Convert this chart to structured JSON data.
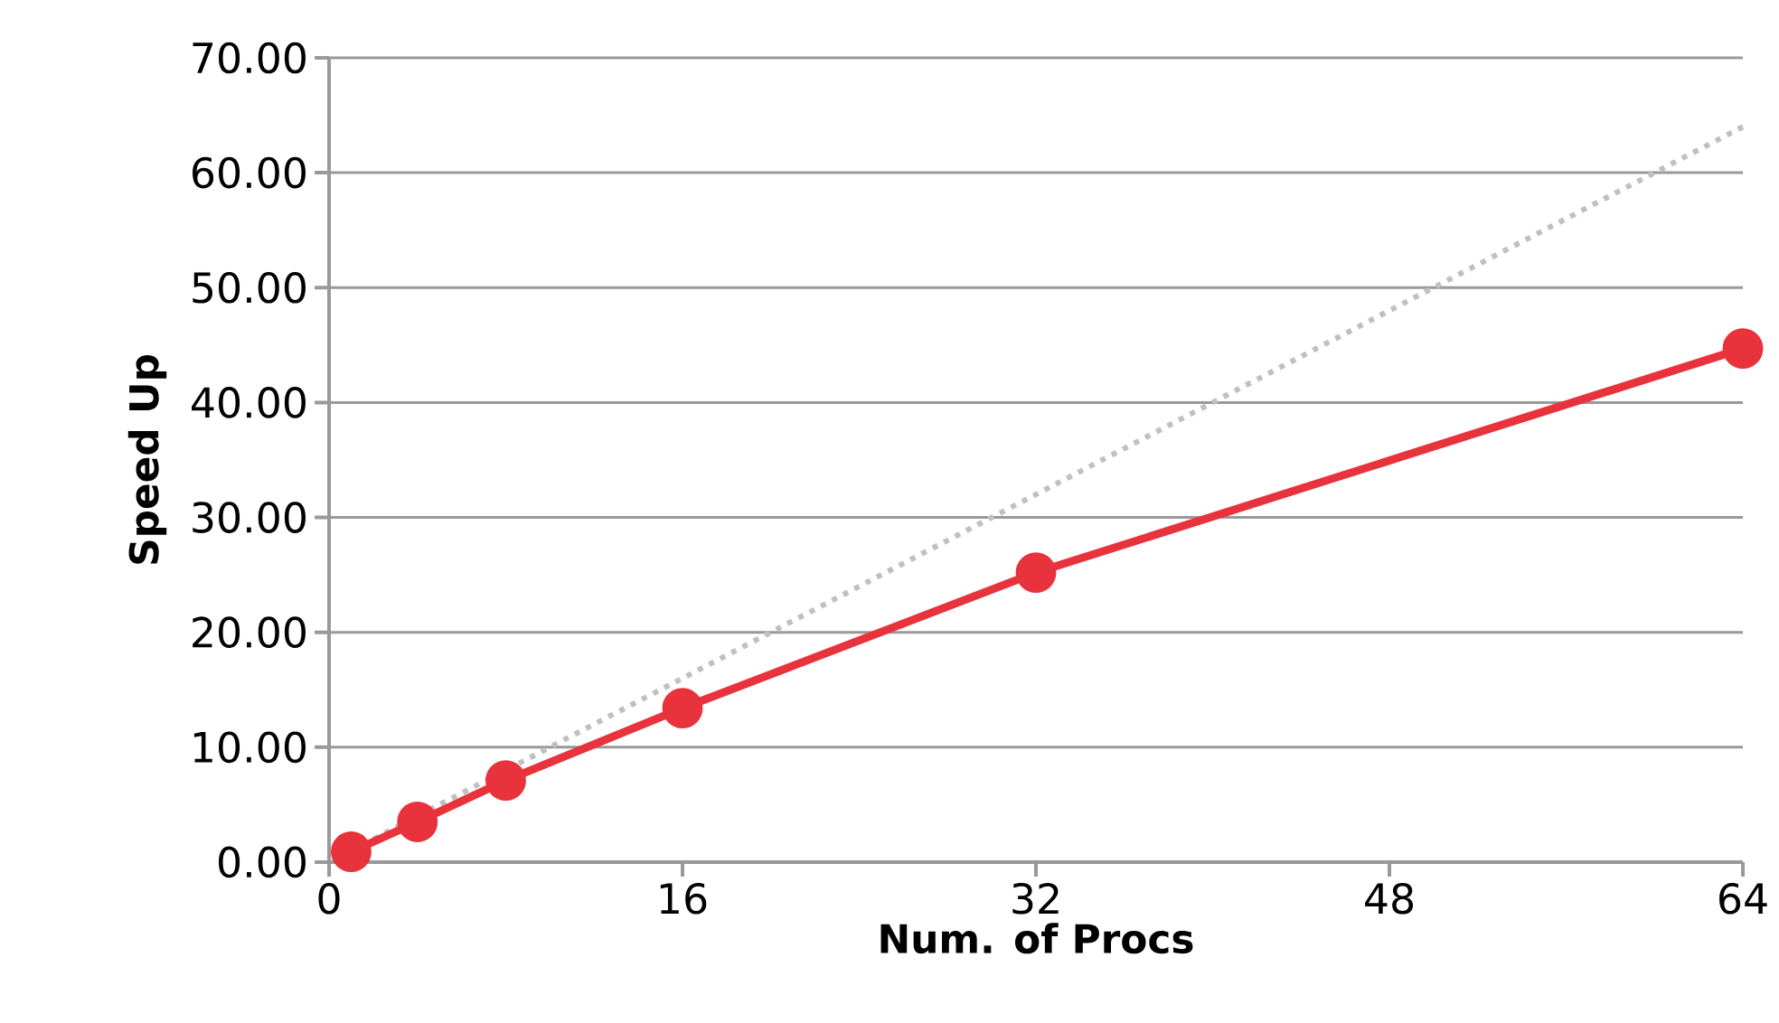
{
  "chart_data": {
    "type": "line",
    "xlabel": "Num. of Procs",
    "ylabel": "Speed Up",
    "series": [
      {
        "x": [
          1,
          64
        ],
        "values": [
          1,
          64
        ],
        "color": "#c0c0c0",
        "line_style": "dotted",
        "marker": "none"
      },
      {
        "x": [
          1,
          4,
          8,
          16,
          32,
          64
        ],
        "values": [
          0.9,
          3.5,
          7.1,
          13.4,
          25.2,
          44.7
        ],
        "color": "#e8323c",
        "line_style": "solid",
        "marker": "circle"
      }
    ],
    "xlim": [
      0,
      64
    ],
    "xticks": [
      0,
      16,
      32,
      48,
      64
    ],
    "ylim": [
      0,
      70
    ],
    "yticks": [
      {
        "value": 0,
        "label": "0.00"
      },
      {
        "value": 10,
        "label": "10.00"
      },
      {
        "value": 20,
        "label": "20.00"
      },
      {
        "value": 30,
        "label": "30.00"
      },
      {
        "value": 40,
        "label": "40.00"
      },
      {
        "value": 50,
        "label": "50.00"
      },
      {
        "value": 60,
        "label": "60.00"
      },
      {
        "value": 70,
        "label": "70.00"
      }
    ],
    "grid": "y"
  }
}
